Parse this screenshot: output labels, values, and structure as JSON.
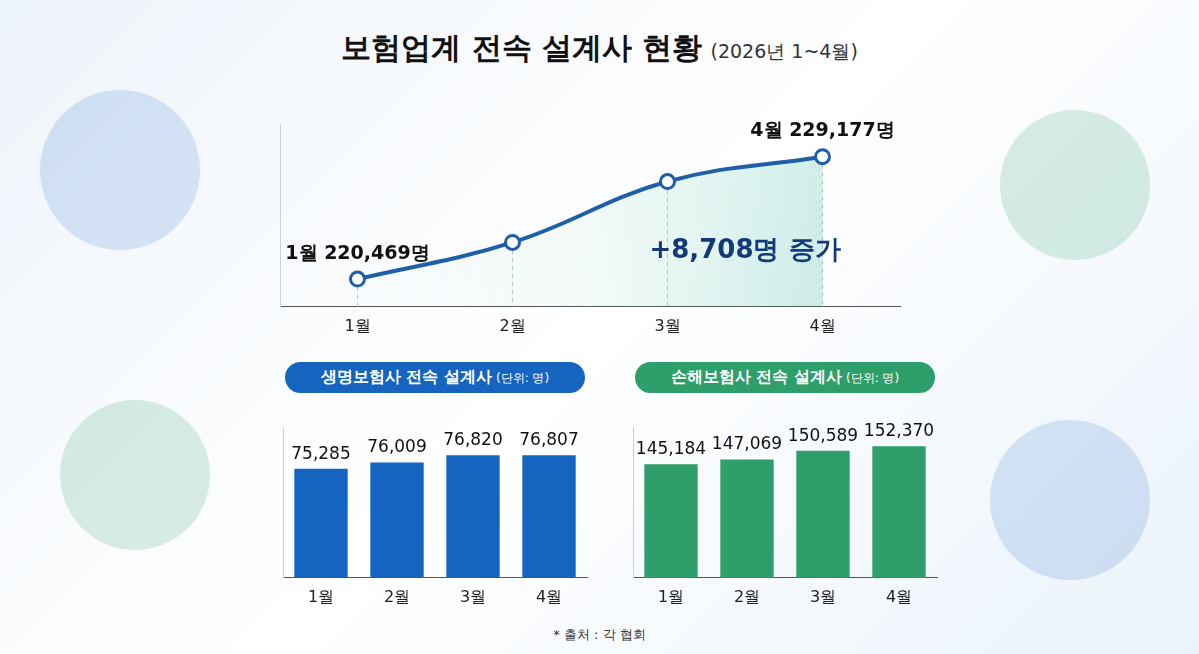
{
  "title": "보험업계 전속 설계사 현황",
  "subtitle": "(2026년 1~4월)",
  "source": "* 출처 : 각 협회",
  "chart_data": [
    {
      "type": "line",
      "categories": [
        "1월",
        "2월",
        "3월",
        "4월"
      ],
      "values": [
        220469,
        223078,
        227409,
        229177
      ],
      "color": "#1f5fa8",
      "ylim": [
        218500,
        231500
      ],
      "tick_labels": "x",
      "grid": false,
      "marker": "circle",
      "annotations": [
        {
          "text": "1월 220,469명",
          "at": "1월"
        },
        {
          "text": "4월 229,177명",
          "at": "4월"
        },
        {
          "text": "+8,708명 증가",
          "at": "3월"
        }
      ]
    },
    {
      "type": "bar",
      "title": "생명보험사 전속 설계사",
      "unit": "(단위: 명)",
      "categories": [
        "1월",
        "2월",
        "3월",
        "4월"
      ],
      "values": [
        75285,
        76009,
        76820,
        76807
      ],
      "value_labels": [
        "75,285",
        "76,009",
        "76,820",
        "76,807"
      ],
      "color": "#1565c0",
      "ylim": [
        63000,
        80000
      ],
      "tick_labels": "x",
      "grid": false,
      "data_labels": true
    },
    {
      "type": "bar",
      "title": "손해보험사 전속 설계사",
      "unit": "(단위: 명)",
      "categories": [
        "1월",
        "2월",
        "3월",
        "4월"
      ],
      "values": [
        145184,
        147069,
        150589,
        152370
      ],
      "value_labels": [
        "145,184",
        "147,069",
        "150,589",
        "152,370"
      ],
      "color": "#2e9e6a",
      "ylim": [
        100000,
        160000
      ],
      "tick_labels": "x",
      "grid": false,
      "data_labels": true
    }
  ]
}
